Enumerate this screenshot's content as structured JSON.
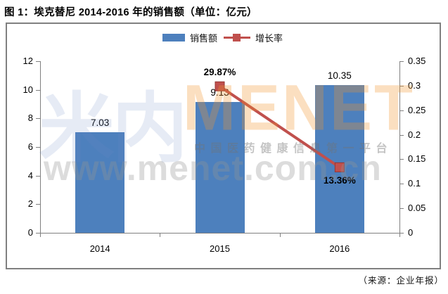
{
  "title": "图 1：埃克替尼 2014-2016 年的销售额（单位：亿元）",
  "source": "（来源：企业年报）",
  "legend": {
    "sales_label": "销售额",
    "growth_label": "增长率"
  },
  "watermark": {
    "brand_cn": "米内",
    "brand_en": "MENET",
    "slogan": "中国医药健康信息第一平台",
    "url": "www.menet.com.cn"
  },
  "colors": {
    "bar_blue": "#4d80bd",
    "line_red": "#c0504d",
    "axis_gray": "#808080"
  },
  "chart_data": {
    "type": "bar",
    "subtype": "combo-bar-line-dual-axis",
    "title": "图 1：埃克替尼 2014-2016 年的销售额（单位：亿元）",
    "categories": [
      "2014",
      "2015",
      "2016"
    ],
    "series": [
      {
        "name": "销售额",
        "type": "bar",
        "axis": "left",
        "color": "#4d80bd",
        "values": [
          7.03,
          9.13,
          10.35
        ],
        "labels": [
          "7.03",
          "9.13",
          "10.35"
        ]
      },
      {
        "name": "增长率",
        "type": "line",
        "axis": "right",
        "color": "#c0504d",
        "values": [
          null,
          0.2987,
          0.1336
        ],
        "labels": [
          null,
          "29.87%",
          "13.36%"
        ],
        "label_positions": [
          null,
          "above",
          "below"
        ]
      }
    ],
    "left_axis": {
      "min": 0,
      "max": 12,
      "ticks": [
        0,
        2,
        4,
        6,
        8,
        10,
        12
      ]
    },
    "right_axis": {
      "min": 0,
      "max": 0.35,
      "ticks": [
        0,
        0.05,
        0.1,
        0.15,
        0.2,
        0.25,
        0.3,
        0.35
      ]
    },
    "grid": false,
    "legend_position": "top"
  }
}
